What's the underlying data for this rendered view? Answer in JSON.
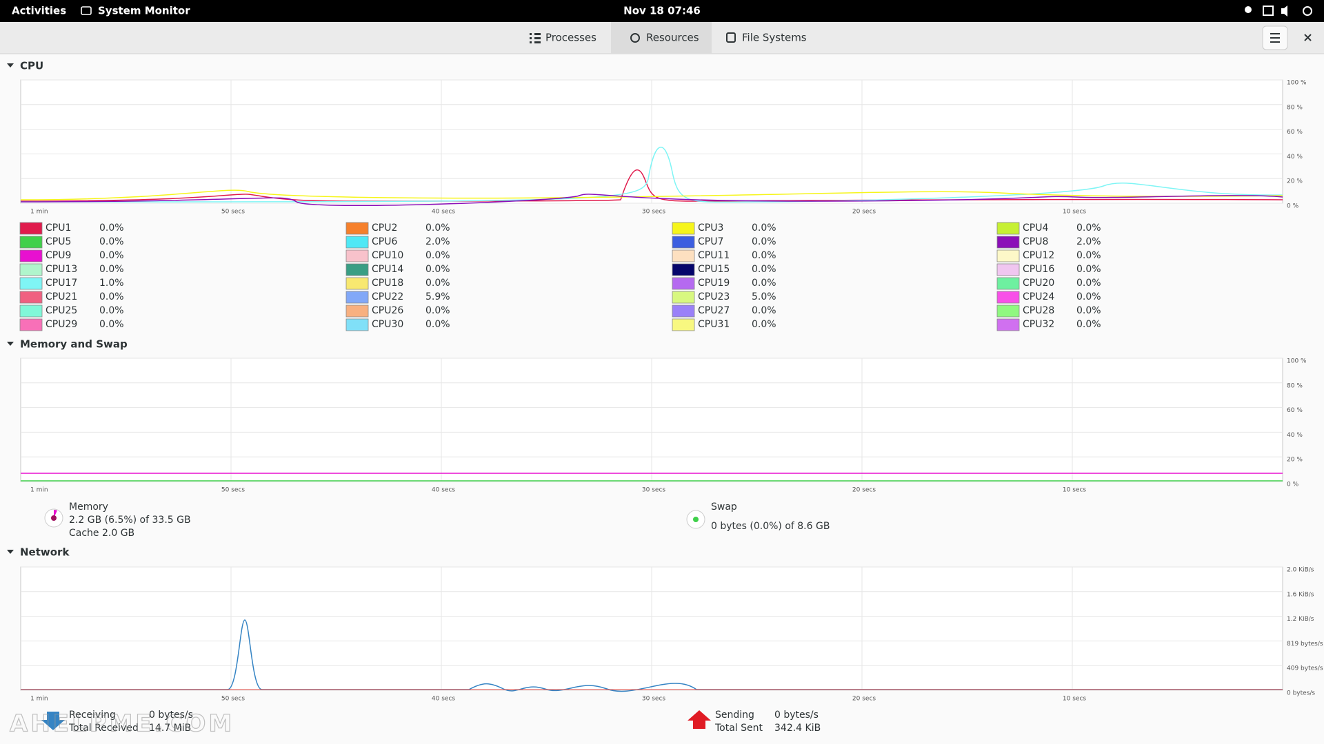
{
  "topbar": {
    "activities": "Activities",
    "app": "System Monitor",
    "clock": "Nov 18  07:46"
  },
  "tabs": [
    "Processes",
    "Resources",
    "File Systems"
  ],
  "cpu": {
    "title": "CPU",
    "yticks": [
      "100 %",
      "80 %",
      "60 %",
      "40 %",
      "20 %",
      "0 %"
    ],
    "xticks": [
      "1 min",
      "50 secs",
      "40 secs",
      "30 secs",
      "20 secs",
      "10 secs"
    ],
    "legend": [
      {
        "name": "CPU1",
        "value": "0.0%",
        "color": "#e01b4c"
      },
      {
        "name": "CPU2",
        "value": "0.0%",
        "color": "#f6802b"
      },
      {
        "name": "CPU3",
        "value": "0.0%",
        "color": "#f6f51b"
      },
      {
        "name": "CPU4",
        "value": "0.0%",
        "color": "#c6f033"
      },
      {
        "name": "CPU5",
        "value": "0.0%",
        "color": "#3fd04a"
      },
      {
        "name": "CPU6",
        "value": "2.0%",
        "color": "#4fe8f5"
      },
      {
        "name": "CPU7",
        "value": "0.0%",
        "color": "#3c5ee0"
      },
      {
        "name": "CPU8",
        "value": "2.0%",
        "color": "#8b0fb8"
      },
      {
        "name": "CPU9",
        "value": "0.0%",
        "color": "#e810d0"
      },
      {
        "name": "CPU10",
        "value": "0.0%",
        "color": "#f8c2cb"
      },
      {
        "name": "CPU11",
        "value": "0.0%",
        "color": "#fde0c0"
      },
      {
        "name": "CPU12",
        "value": "0.0%",
        "color": "#fdf8c8"
      },
      {
        "name": "CPU13",
        "value": "0.0%",
        "color": "#b0f5cc"
      },
      {
        "name": "CPU14",
        "value": "0.0%",
        "color": "#3a9e84"
      },
      {
        "name": "CPU15",
        "value": "0.0%",
        "color": "#05056b"
      },
      {
        "name": "CPU16",
        "value": "0.0%",
        "color": "#f0c6f0"
      },
      {
        "name": "CPU17",
        "value": "1.0%",
        "color": "#7ff5f5"
      },
      {
        "name": "CPU18",
        "value": "0.0%",
        "color": "#f8e870"
      },
      {
        "name": "CPU19",
        "value": "0.0%",
        "color": "#b56af0"
      },
      {
        "name": "CPU20",
        "value": "0.0%",
        "color": "#6ef0a0"
      },
      {
        "name": "CPU21",
        "value": "0.0%",
        "color": "#f06080"
      },
      {
        "name": "CPU22",
        "value": "5.9%",
        "color": "#82a8f8"
      },
      {
        "name": "CPU23",
        "value": "5.0%",
        "color": "#d8f880"
      },
      {
        "name": "CPU24",
        "value": "0.0%",
        "color": "#f850e8"
      },
      {
        "name": "CPU25",
        "value": "0.0%",
        "color": "#80f8d8"
      },
      {
        "name": "CPU26",
        "value": "0.0%",
        "color": "#f8b080"
      },
      {
        "name": "CPU27",
        "value": "0.0%",
        "color": "#9a80f8"
      },
      {
        "name": "CPU28",
        "value": "0.0%",
        "color": "#90f880"
      },
      {
        "name": "CPU29",
        "value": "0.0%",
        "color": "#f870b8"
      },
      {
        "name": "CPU30",
        "value": "0.0%",
        "color": "#80e0f8"
      },
      {
        "name": "CPU31",
        "value": "0.0%",
        "color": "#f8f880"
      },
      {
        "name": "CPU32",
        "value": "0.0%",
        "color": "#d070f0"
      }
    ]
  },
  "memory": {
    "title": "Memory and Swap",
    "yticks": [
      "100 %",
      "80 %",
      "60 %",
      "40 %",
      "20 %",
      "0 %"
    ],
    "xticks": [
      "1 min",
      "50 secs",
      "40 secs",
      "30 secs",
      "20 secs",
      "10 secs"
    ],
    "memory": {
      "label": "Memory",
      "usage": "2.2 GB (6.5%) of 33.5 GB",
      "cache": "Cache 2.0 GB"
    },
    "swap": {
      "label": "Swap",
      "usage": "0 bytes (0.0%) of 8.6 GB"
    }
  },
  "network": {
    "title": "Network",
    "yticks": [
      "2.0 KiB/s",
      "1.6 KiB/s",
      "1.2 KiB/s",
      "819 bytes/s",
      "409 bytes/s",
      "0 bytes/s"
    ],
    "xticks": [
      "1 min",
      "50 secs",
      "40 secs",
      "30 secs",
      "20 secs",
      "10 secs"
    ],
    "receiving": {
      "label": "Receiving",
      "rate": "0 bytes/s",
      "total_label": "Total Received",
      "total": "14.7 MiB"
    },
    "sending": {
      "label": "Sending",
      "rate": "0 bytes/s",
      "total_label": "Total Sent",
      "total": "342.4 KiB"
    }
  },
  "watermark": "AHELPME.COM"
}
